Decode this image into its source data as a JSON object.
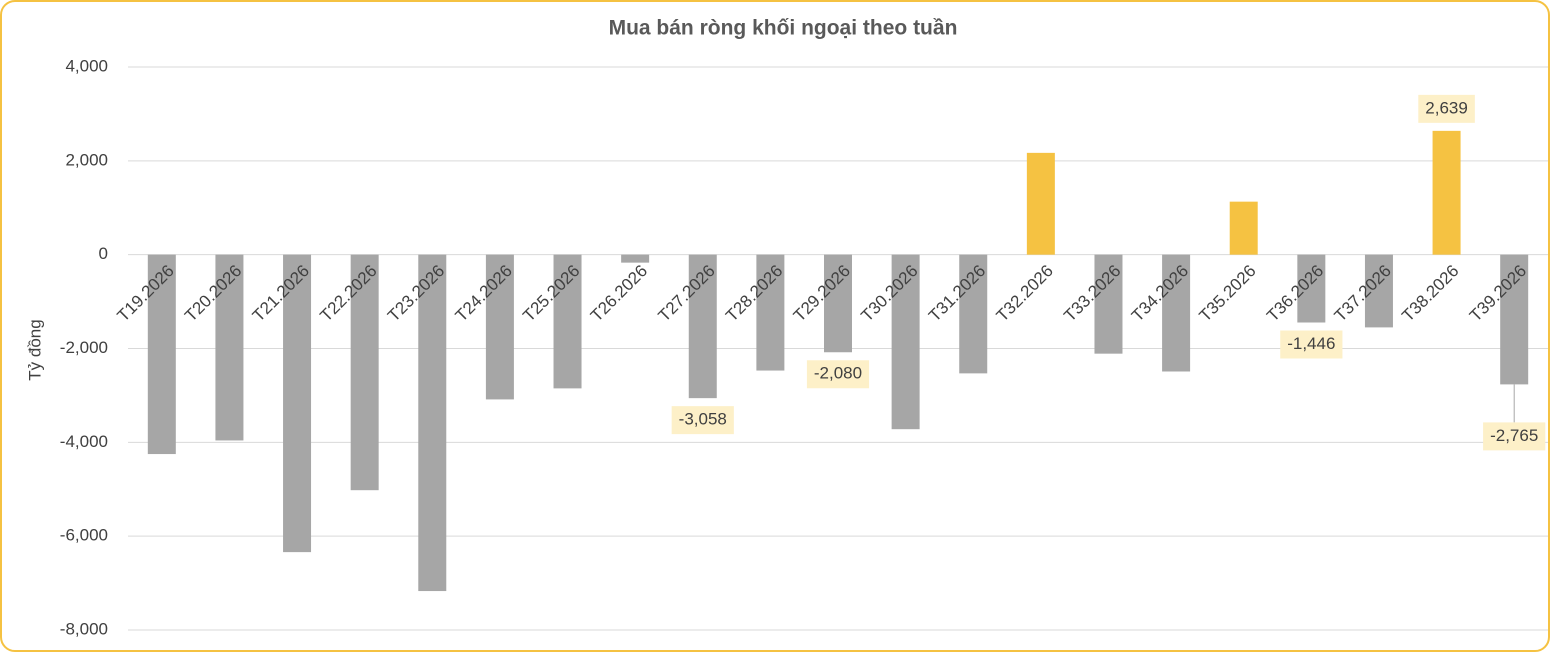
{
  "chart_data": {
    "type": "bar",
    "title": "Mua bán ròng khối ngoại theo tuần",
    "y_label": "Tỷ đồng",
    "categories": [
      "T19.2026",
      "T20.2026",
      "T21.2026",
      "T22.2026",
      "T23.2026",
      "T24.2026",
      "T25.2026",
      "T26.2026",
      "T27.2026",
      "T28.2026",
      "T29.2026",
      "T30.2026",
      "T31.2026",
      "T32.2026",
      "T33.2026",
      "T34.2026",
      "T35.2026",
      "T36.2026",
      "T37.2026",
      "T38.2026",
      "T39.2026"
    ],
    "values": [
      -4250,
      -3960,
      -6340,
      -5020,
      -7170,
      -3085,
      -2850,
      -170,
      -3058,
      -2470,
      -2080,
      -3720,
      -2530,
      2170,
      -2110,
      -2490,
      1130,
      -1446,
      -1550,
      2639,
      -2765
    ],
    "value_labels": [
      null,
      null,
      null,
      null,
      null,
      null,
      null,
      null,
      "-3,058",
      null,
      "-2,080",
      null,
      null,
      null,
      null,
      null,
      null,
      "-1,446",
      null,
      "2,639",
      "-2,765"
    ],
    "positive_color": "#f5c242",
    "negative_color": "#a6a6a6",
    "ylim": [
      -8000,
      4000
    ],
    "yticks": [
      {
        "value": -8000,
        "label": "-8,000"
      },
      {
        "value": -6000,
        "label": "-6,000"
      },
      {
        "value": -4000,
        "label": "-4,000"
      },
      {
        "value": -2000,
        "label": "-2,000"
      },
      0,
      {
        "value": 2000,
        "label": "2,000"
      },
      {
        "value": 4000,
        "label": "4,000"
      }
    ],
    "grid": true
  }
}
